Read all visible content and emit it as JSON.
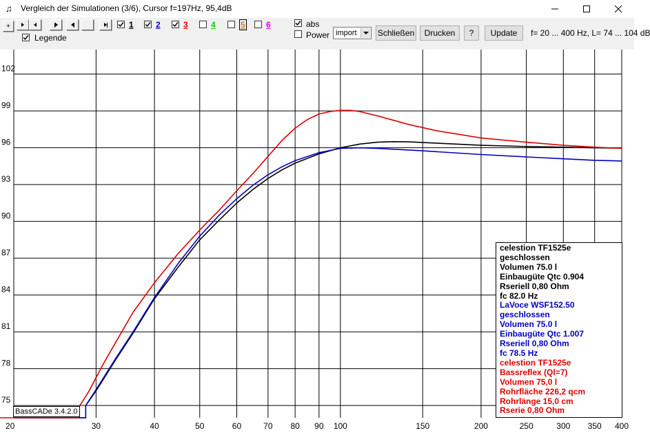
{
  "window": {
    "title": "Vergleich der Simulationen (3/6), Cursor f=197Hz, 95,4dB",
    "app_icon_name": "basscade-app-icon"
  },
  "toolbar": {
    "plus_label": "+",
    "legend_label": "Legende",
    "legend_checked": true,
    "sims": [
      {
        "label": "1",
        "checked": true,
        "color": "#000000"
      },
      {
        "label": "2",
        "checked": true,
        "color": "#0000c0"
      },
      {
        "label": "3",
        "checked": true,
        "color": "#e00000"
      },
      {
        "label": "4",
        "checked": false,
        "color": "#00d000"
      },
      {
        "label": "5",
        "checked": false,
        "color": "#c08040"
      },
      {
        "label": "6",
        "checked": false,
        "color": "#e000e0"
      }
    ],
    "abs_label": "abs",
    "abs_checked": true,
    "power_label": "Power",
    "power_checked": false,
    "mode_select": "import",
    "close_button": "Schließen",
    "print_button": "Drucken",
    "help_button": "?",
    "update_button": "Update",
    "range_info": "f= 20 ... 400 Hz, L= 74 ... 104 dB"
  },
  "chart_data": {
    "type": "line",
    "title": "",
    "xlabel": "",
    "ylabel": "",
    "x_scale": "log",
    "xlim": [
      20,
      400
    ],
    "ylim": [
      74,
      104
    ],
    "x_ticks": [
      20,
      30,
      40,
      50,
      60,
      70,
      80,
      90,
      100,
      150,
      200,
      250,
      300,
      350,
      400
    ],
    "y_ticks": [
      75,
      78,
      81,
      84,
      87,
      90,
      93,
      96,
      99,
      102
    ],
    "grid": true,
    "series": [
      {
        "name": "1",
        "color": "#000000",
        "points": [
          [
            28.5,
            75
          ],
          [
            30,
            76.2
          ],
          [
            33,
            78.7
          ],
          [
            36,
            80.9
          ],
          [
            40,
            83.7
          ],
          [
            45,
            86.3
          ],
          [
            50,
            88.5
          ],
          [
            55,
            90.1
          ],
          [
            60,
            91.5
          ],
          [
            65,
            92.6
          ],
          [
            70,
            93.5
          ],
          [
            75,
            94.2
          ],
          [
            80,
            94.75
          ],
          [
            90,
            95.5
          ],
          [
            100,
            96.0
          ],
          [
            110,
            96.3
          ],
          [
            120,
            96.45
          ],
          [
            130,
            96.5
          ],
          [
            140,
            96.48
          ],
          [
            160,
            96.38
          ],
          [
            200,
            96.2
          ],
          [
            250,
            96.1
          ],
          [
            300,
            96.05
          ],
          [
            350,
            96.0
          ],
          [
            400,
            95.97
          ]
        ]
      },
      {
        "name": "2",
        "color": "#0000c0",
        "points": [
          [
            28.5,
            75
          ],
          [
            30,
            76.3
          ],
          [
            33,
            78.8
          ],
          [
            36,
            81.0
          ],
          [
            40,
            83.8
          ],
          [
            45,
            86.6
          ],
          [
            50,
            88.8
          ],
          [
            55,
            90.5
          ],
          [
            60,
            91.85
          ],
          [
            65,
            92.95
          ],
          [
            70,
            93.8
          ],
          [
            75,
            94.45
          ],
          [
            80,
            94.95
          ],
          [
            90,
            95.6
          ],
          [
            100,
            95.95
          ],
          [
            110,
            96.0
          ],
          [
            120,
            95.95
          ],
          [
            150,
            95.75
          ],
          [
            200,
            95.45
          ],
          [
            250,
            95.25
          ],
          [
            300,
            95.1
          ],
          [
            350,
            94.98
          ],
          [
            400,
            94.92
          ]
        ]
      },
      {
        "name": "3",
        "color": "#e00000",
        "points": [
          [
            26.5,
            74
          ],
          [
            27.5,
            74.8
          ],
          [
            29,
            76.2
          ],
          [
            31,
            78.3
          ],
          [
            33,
            80.1
          ],
          [
            36,
            82.6
          ],
          [
            40,
            85.0
          ],
          [
            45,
            87.4
          ],
          [
            50,
            89.3
          ],
          [
            55,
            90.9
          ],
          [
            60,
            92.5
          ],
          [
            65,
            93.9
          ],
          [
            70,
            95.3
          ],
          [
            75,
            96.6
          ],
          [
            80,
            97.6
          ],
          [
            85,
            98.3
          ],
          [
            90,
            98.75
          ],
          [
            95,
            98.95
          ],
          [
            100,
            99.05
          ],
          [
            105,
            99.05
          ],
          [
            110,
            98.95
          ],
          [
            120,
            98.6
          ],
          [
            140,
            97.9
          ],
          [
            160,
            97.4
          ],
          [
            200,
            96.8
          ],
          [
            250,
            96.45
          ],
          [
            300,
            96.2
          ],
          [
            350,
            96.05
          ],
          [
            400,
            95.95
          ]
        ]
      }
    ]
  },
  "legend": {
    "groups": [
      {
        "color": "#000000",
        "lines": [
          "celestion TF1525e",
          "geschlossen",
          "Volumen 75.0 l",
          "Einbaugüte Qtc 0.904",
          "Rseriell 0,80 Ohm",
          "fc 82.0 Hz"
        ]
      },
      {
        "color": "#0000c0",
        "lines": [
          "LaVoce WSF152.50",
          "geschlossen",
          "Volumen 75.0 l",
          "Einbaugüte Qtc 1.007",
          "Rseriell 0,80 Ohm",
          "fc 78.5 Hz"
        ]
      },
      {
        "color": "#e00000",
        "lines": [
          "celestion TF1525e",
          "Bassreflex (Ql=7)",
          "Volumen 75,0 l",
          "Rohrfläche 226,2 qcm",
          "Rohrlänge 15,0 cm",
          "Rserie 0,80 Ohm"
        ]
      }
    ]
  },
  "version_label": "BassCADe 3.4.2.0"
}
